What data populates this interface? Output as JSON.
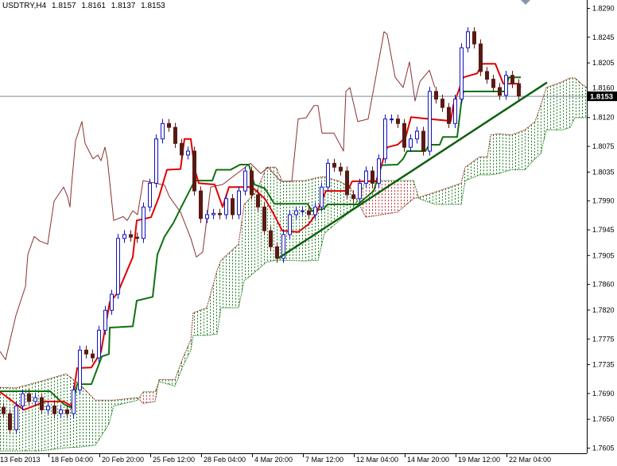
{
  "header": {
    "symbol": "USDTRY,H4",
    "open": "1.8157",
    "high": "1.8161",
    "low": "1.8137",
    "close": "1.8153"
  },
  "colors": {
    "bull_candle": "#1010c0",
    "bear_candle": "#5a1a14",
    "tenkan": "#e00000",
    "kijun": "#107010",
    "chikou": "#8b3030",
    "span_a": "#8b3a2a",
    "span_b": "#2d8a2d",
    "cloud_bull": "#1a7a1a",
    "cloud_bear": "#c03030",
    "trendline": "#106010",
    "price_line": "#7a8a96"
  },
  "chart_data": {
    "type": "candlestick",
    "title": "USDTRY,H4",
    "indicator": "Ichimoku Kinko Hyo",
    "ylim": [
      1.76,
      1.8302
    ],
    "y_ticks": [
      "1.8290",
      "1.8245",
      "1.8205",
      "1.8160",
      "1.8120",
      "1.8075",
      "1.8035",
      "1.7990",
      "1.7945",
      "1.7905",
      "1.7860",
      "1.7820",
      "1.7775",
      "1.7735",
      "1.7690",
      "1.7650",
      "1.7605"
    ],
    "x_ticks": [
      "13 Feb 2013",
      "18 Feb 04:00",
      "20 Feb 20:00",
      "25 Feb 12:00",
      "28 Feb 04:00",
      "4 Mar 20:00",
      "7 Mar 12:00",
      "12 Mar 04:00",
      "14 Mar 20:00",
      "19 Mar 12:00",
      "22 Mar 04:00"
    ],
    "current_price": "1.8153",
    "closes": [
      1.7658,
      1.7633,
      1.767,
      1.7689,
      1.7677,
      1.7683,
      1.7664,
      1.767,
      1.7658,
      1.7664,
      1.7658,
      1.7695,
      1.7757,
      1.7751,
      1.7745,
      1.7788,
      1.7819,
      1.7844,
      1.7931,
      1.7937,
      1.7933,
      1.7931,
      1.798,
      1.8017,
      1.8086,
      1.811,
      1.8104,
      1.8079,
      1.8061,
      1.8067,
      1.8005,
      1.7962,
      1.7968,
      1.797,
      1.7968,
      1.7993,
      1.7968,
      1.8005,
      1.8036,
      1.7999,
      1.798,
      1.7943,
      1.7918,
      1.79,
      1.7937,
      1.7968,
      1.7974,
      1.7974,
      1.7968,
      1.798,
      1.8011,
      1.8048,
      1.8042,
      1.8036,
      1.7999,
      1.7993,
      1.8017,
      1.8036,
      1.8017,
      1.8055,
      1.8117,
      1.8117,
      1.811,
      1.8073,
      1.8086,
      1.8098,
      1.8067,
      1.816,
      1.8148,
      1.8135,
      1.811,
      1.8148,
      1.8228,
      1.8253,
      1.8234,
      1.8191,
      1.8179,
      1.8166,
      1.8154,
      1.8185,
      1.8172,
      1.8153
    ],
    "tenkan_sen": [
      [
        0,
        1.7692
      ],
      [
        7.5,
        1.7664
      ],
      [
        14.25,
        1.7677
      ],
      [
        20,
        1.7677
      ],
      [
        22.5,
        1.767
      ],
      [
        24.25,
        1.7729
      ],
      [
        28.75,
        1.773
      ],
      [
        31.75,
        1.7754
      ],
      [
        34.5,
        1.7832
      ],
      [
        37,
        1.7846
      ],
      [
        41.75,
        1.7902
      ],
      [
        43,
        1.7959
      ],
      [
        47.5,
        1.7964
      ],
      [
        50,
        1.7996
      ],
      [
        52.5,
        1.8038
      ],
      [
        56.75,
        1.8039
      ],
      [
        58,
        1.8086
      ],
      [
        60,
        1.8086
      ],
      [
        61.25,
        1.8038
      ],
      [
        62.5,
        1.8017
      ],
      [
        67.5,
        1.8015
      ],
      [
        70,
        1.798
      ],
      [
        72,
        1.8011
      ],
      [
        79.25,
        1.8011
      ],
      [
        83.25,
        1.7993
      ],
      [
        85.75,
        1.7972
      ],
      [
        88.75,
        1.7943
      ],
      [
        93.75,
        1.7941
      ],
      [
        97,
        1.7953
      ],
      [
        99.25,
        1.7968
      ],
      [
        102.5,
        1.8005
      ],
      [
        109.25,
        1.8005
      ],
      [
        110.75,
        1.802
      ],
      [
        118.25,
        1.802
      ],
      [
        121.75,
        1.8073
      ],
      [
        125,
        1.8077
      ],
      [
        127.5,
        1.8088
      ],
      [
        129.25,
        1.812
      ],
      [
        135,
        1.8117
      ],
      [
        141.75,
        1.8114
      ],
      [
        142.5,
        1.8138
      ],
      [
        145.75,
        1.8182
      ],
      [
        150,
        1.8188
      ],
      [
        151.75,
        1.8203
      ],
      [
        155.75,
        1.8203
      ],
      [
        158.25,
        1.8172
      ],
      [
        163,
        1.8172
      ],
      [
        163.75,
        1.8166
      ]
    ],
    "kijun_sen": [
      [
        0,
        1.7693
      ],
      [
        15.75,
        1.7693
      ],
      [
        20,
        1.7673
      ],
      [
        22.5,
        1.7667
      ],
      [
        24.25,
        1.7704
      ],
      [
        28.75,
        1.7704
      ],
      [
        32,
        1.7747
      ],
      [
        34.25,
        1.7751
      ],
      [
        34.5,
        1.7792
      ],
      [
        41.75,
        1.7794
      ],
      [
        43,
        1.7834
      ],
      [
        48,
        1.784
      ],
      [
        49.5,
        1.7906
      ],
      [
        51.75,
        1.7934
      ],
      [
        54.5,
        1.7955
      ],
      [
        57,
        1.798
      ],
      [
        60,
        1.8009
      ],
      [
        61.25,
        1.8021
      ],
      [
        66.75,
        1.8021
      ],
      [
        68,
        1.8038
      ],
      [
        72.5,
        1.8038
      ],
      [
        75.5,
        1.8046
      ],
      [
        78.25,
        1.8046
      ],
      [
        80,
        1.8015
      ],
      [
        83.25,
        1.8009
      ],
      [
        86.25,
        1.7985
      ],
      [
        96.75,
        1.7985
      ],
      [
        98,
        1.7974
      ],
      [
        101.75,
        1.7977
      ],
      [
        103,
        1.7984
      ],
      [
        112.5,
        1.7984
      ],
      [
        117.5,
        1.8005
      ],
      [
        120,
        1.8045
      ],
      [
        125,
        1.8046
      ],
      [
        126.75,
        1.8055
      ],
      [
        128,
        1.8067
      ],
      [
        133.75,
        1.8067
      ],
      [
        135,
        1.8077
      ],
      [
        138.25,
        1.8077
      ],
      [
        139.25,
        1.8089
      ],
      [
        143.75,
        1.8089
      ],
      [
        145,
        1.8141
      ],
      [
        145.75,
        1.816
      ],
      [
        158.75,
        1.816
      ],
      [
        160,
        1.8182
      ],
      [
        163.75,
        1.8182
      ]
    ],
    "chikou_span": [
      [
        0,
        1.7755
      ],
      [
        1.75,
        1.7742
      ],
      [
        5,
        1.7811
      ],
      [
        8,
        1.7856
      ],
      [
        8.75,
        1.7906
      ],
      [
        10.75,
        1.7934
      ],
      [
        12.5,
        1.7927
      ],
      [
        15,
        1.7922
      ],
      [
        17,
        1.7989
      ],
      [
        20,
        1.8011
      ],
      [
        21.25,
        1.7996
      ],
      [
        22,
        1.798
      ],
      [
        22.5,
        1.8014
      ],
      [
        23.75,
        1.8083
      ],
      [
        25.75,
        1.8113
      ],
      [
        26.75,
        1.8079
      ],
      [
        29.25,
        1.8055
      ],
      [
        30.75,
        1.8061
      ],
      [
        31.75,
        1.8052
      ],
      [
        33,
        1.8073
      ],
      [
        33.75,
        1.8055
      ],
      [
        35.75,
        1.7959
      ],
      [
        38.75,
        1.7965
      ],
      [
        40,
        1.7959
      ],
      [
        41.75,
        1.7974
      ],
      [
        43.25,
        1.7968
      ],
      [
        45,
        1.8021
      ],
      [
        51.75,
        1.8014
      ],
      [
        53.25,
        1.7996
      ],
      [
        56.75,
        1.7972
      ],
      [
        60,
        1.7931
      ],
      [
        61.75,
        1.7902
      ],
      [
        63.75,
        1.791
      ],
      [
        66.25,
        1.8011
      ],
      [
        70,
        1.8015
      ],
      [
        78.75,
        1.8048
      ],
      [
        82,
        1.8032
      ],
      [
        84.25,
        1.8042
      ],
      [
        88.25,
        1.802
      ],
      [
        91.75,
        1.802
      ],
      [
        93.75,
        1.8117
      ],
      [
        96.25,
        1.8119
      ],
      [
        98.75,
        1.8138
      ],
      [
        100,
        1.8138
      ],
      [
        101.25,
        1.8095
      ],
      [
        105,
        1.8095
      ],
      [
        108,
        1.8067
      ],
      [
        108.75,
        1.816
      ],
      [
        110,
        1.8166
      ],
      [
        112.5,
        1.8113
      ],
      [
        115.75,
        1.8117
      ],
      [
        118,
        1.8178
      ],
      [
        120.75,
        1.8253
      ],
      [
        121.75,
        1.8249
      ],
      [
        124.25,
        1.8182
      ],
      [
        126.75,
        1.8166
      ],
      [
        128.75,
        1.8206
      ],
      [
        130.5,
        1.8145
      ],
      [
        132,
        1.8175
      ],
      [
        135,
        1.8193
      ],
      [
        136.75,
        1.8166
      ]
    ],
    "senkou_cloud": [
      [
        0,
        1.7699,
        1.76
      ],
      [
        5,
        1.7698,
        1.76
      ],
      [
        12.5,
        1.7708,
        1.76
      ],
      [
        20.75,
        1.772,
        1.7605
      ],
      [
        25,
        1.7704,
        1.7606
      ],
      [
        30,
        1.7679,
        1.7609
      ],
      [
        34.25,
        1.7679,
        1.7642
      ],
      [
        35.75,
        1.7679,
        1.767
      ],
      [
        43.25,
        1.7683,
        1.7679
      ],
      [
        45,
        1.7674,
        1.7692
      ],
      [
        48.75,
        1.7677,
        1.7692
      ],
      [
        50,
        1.7711,
        1.7708
      ],
      [
        55,
        1.7711,
        1.7701
      ],
      [
        57.5,
        1.7745,
        1.7732
      ],
      [
        60,
        1.7773,
        1.7757
      ],
      [
        60.75,
        1.7815,
        1.778
      ],
      [
        65,
        1.7823,
        1.778
      ],
      [
        68.25,
        1.7881,
        1.7782
      ],
      [
        69.5,
        1.7897,
        1.7823
      ],
      [
        75,
        1.7922,
        1.7823
      ],
      [
        76.75,
        1.7984,
        1.7865
      ],
      [
        80.75,
        1.8005,
        1.7881
      ],
      [
        83.75,
        1.8042,
        1.7894
      ],
      [
        86.75,
        1.8042,
        1.7897
      ],
      [
        88.75,
        1.802,
        1.7897
      ],
      [
        95.75,
        1.8021,
        1.7896
      ],
      [
        100,
        1.8026,
        1.7897
      ],
      [
        102,
        1.8027,
        1.7939
      ],
      [
        106.75,
        1.802,
        1.7959
      ],
      [
        110,
        1.8011,
        1.7972
      ],
      [
        111.75,
        1.7996,
        1.7984
      ],
      [
        115,
        1.7964,
        1.8021
      ],
      [
        120,
        1.7968,
        1.8021
      ],
      [
        125,
        1.7972,
        1.8021
      ],
      [
        130,
        1.7993,
        1.8021
      ],
      [
        131.75,
        1.7995,
        1.7993
      ],
      [
        136.75,
        1.8003,
        1.7984
      ],
      [
        145,
        1.8017,
        1.7984
      ],
      [
        146.25,
        1.8042,
        1.8021
      ],
      [
        150.75,
        1.8058,
        1.803
      ],
      [
        153.25,
        1.8058,
        1.803
      ],
      [
        154.25,
        1.8092,
        1.803
      ],
      [
        156.75,
        1.8094,
        1.8032
      ],
      [
        160.75,
        1.8092,
        1.8038
      ],
      [
        165,
        1.81,
        1.8038
      ],
      [
        168.25,
        1.8113,
        1.8055
      ],
      [
        170,
        1.8138,
        1.8063
      ],
      [
        171.75,
        1.8166,
        1.81
      ],
      [
        176.75,
        1.8175,
        1.81
      ],
      [
        179.25,
        1.8181,
        1.8104
      ],
      [
        180.75,
        1.8181,
        1.8119
      ],
      [
        183.25,
        1.817,
        1.8119
      ],
      [
        184.5,
        1.8166,
        1.8119
      ]
    ],
    "trendline": [
      [
        87.5,
        1.79
      ],
      [
        172,
        1.8174
      ]
    ]
  }
}
